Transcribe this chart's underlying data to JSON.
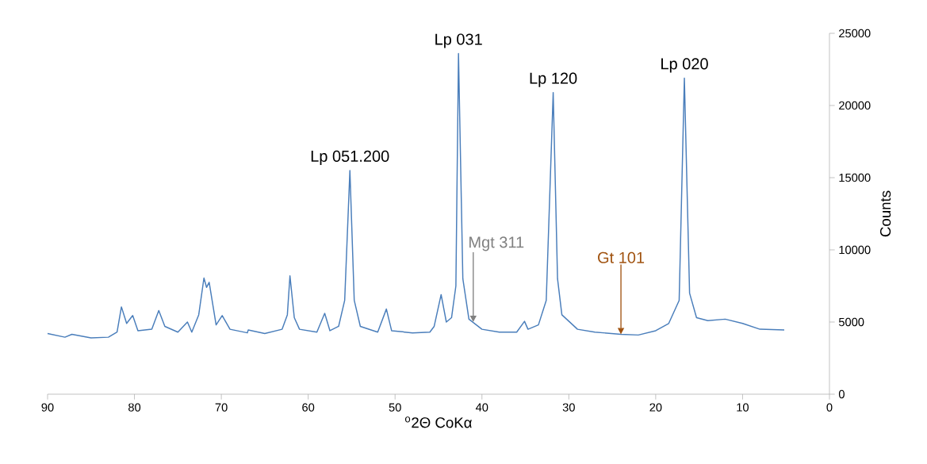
{
  "chart_data": {
    "type": "line",
    "xlabel": "$^{o}$2Θ CoKα",
    "ylabel": "Counts",
    "xlim": [
      90,
      0
    ],
    "ylim": [
      0,
      25000
    ],
    "xticks": [
      90,
      80,
      70,
      60,
      50,
      40,
      30,
      20,
      10,
      0
    ],
    "yticks": [
      0,
      5000,
      10000,
      15000,
      20000,
      25000
    ],
    "grid": false,
    "marker": "none",
    "line_style": "solid",
    "annotations": [
      {
        "text": "Lp 051.200",
        "x": 55.2,
        "y": 15500
      },
      {
        "text": "Lp 031",
        "x": 42.7,
        "y": 23600
      },
      {
        "text": "Lp 120",
        "x": 31.8,
        "y": 20900
      },
      {
        "text": "Lp 020",
        "x": 16.7,
        "y": 21900
      },
      {
        "text": "Mgt 311",
        "x": 41,
        "y": 5000
      },
      {
        "text": "Gt 101",
        "x": 24,
        "y": 4150
      }
    ],
    "series": [
      {
        "color": "#4a7ebb",
        "x": [
          90,
          88,
          87.2,
          85,
          83,
          82,
          81.5,
          80.9,
          80.2,
          79.6,
          78,
          77.2,
          76.5,
          75,
          73.9,
          73.4,
          72.6,
          72.0,
          71.7,
          71.4,
          70.6,
          69.9,
          69,
          67,
          66.9,
          65,
          63,
          62.4,
          62.1,
          61.6,
          61,
          59,
          58.1,
          57.5,
          56.5,
          55.8,
          55.2,
          54.7,
          54,
          52,
          51.0,
          50.4,
          48,
          46,
          45.5,
          44.7,
          44.1,
          43.5,
          43.0,
          42.7,
          42.2,
          41.5,
          40,
          38,
          36,
          35.1,
          34.7,
          33.5,
          32.6,
          31.8,
          31.3,
          30.8,
          29,
          27,
          24,
          22,
          20,
          18.5,
          17.3,
          16.7,
          16.1,
          15.3,
          14,
          12,
          10,
          8,
          5.2
        ],
        "values": [
          4200,
          3950,
          4150,
          3900,
          3950,
          4300,
          6050,
          4900,
          5450,
          4400,
          4500,
          5800,
          4700,
          4300,
          5000,
          4300,
          5500,
          8050,
          7400,
          7750,
          4800,
          5450,
          4500,
          4250,
          4450,
          4200,
          4500,
          5500,
          8200,
          5300,
          4500,
          4300,
          5600,
          4400,
          4700,
          6500,
          15500,
          6500,
          4700,
          4300,
          5900,
          4400,
          4250,
          4300,
          4700,
          6900,
          5000,
          5300,
          7500,
          23600,
          8000,
          5200,
          4500,
          4300,
          4300,
          5050,
          4500,
          4800,
          6500,
          20900,
          8000,
          5500,
          4500,
          4300,
          4150,
          4100,
          4400,
          4900,
          6500,
          21900,
          7000,
          5300,
          5100,
          5200,
          4900,
          4500,
          4450
        ]
      }
    ]
  }
}
